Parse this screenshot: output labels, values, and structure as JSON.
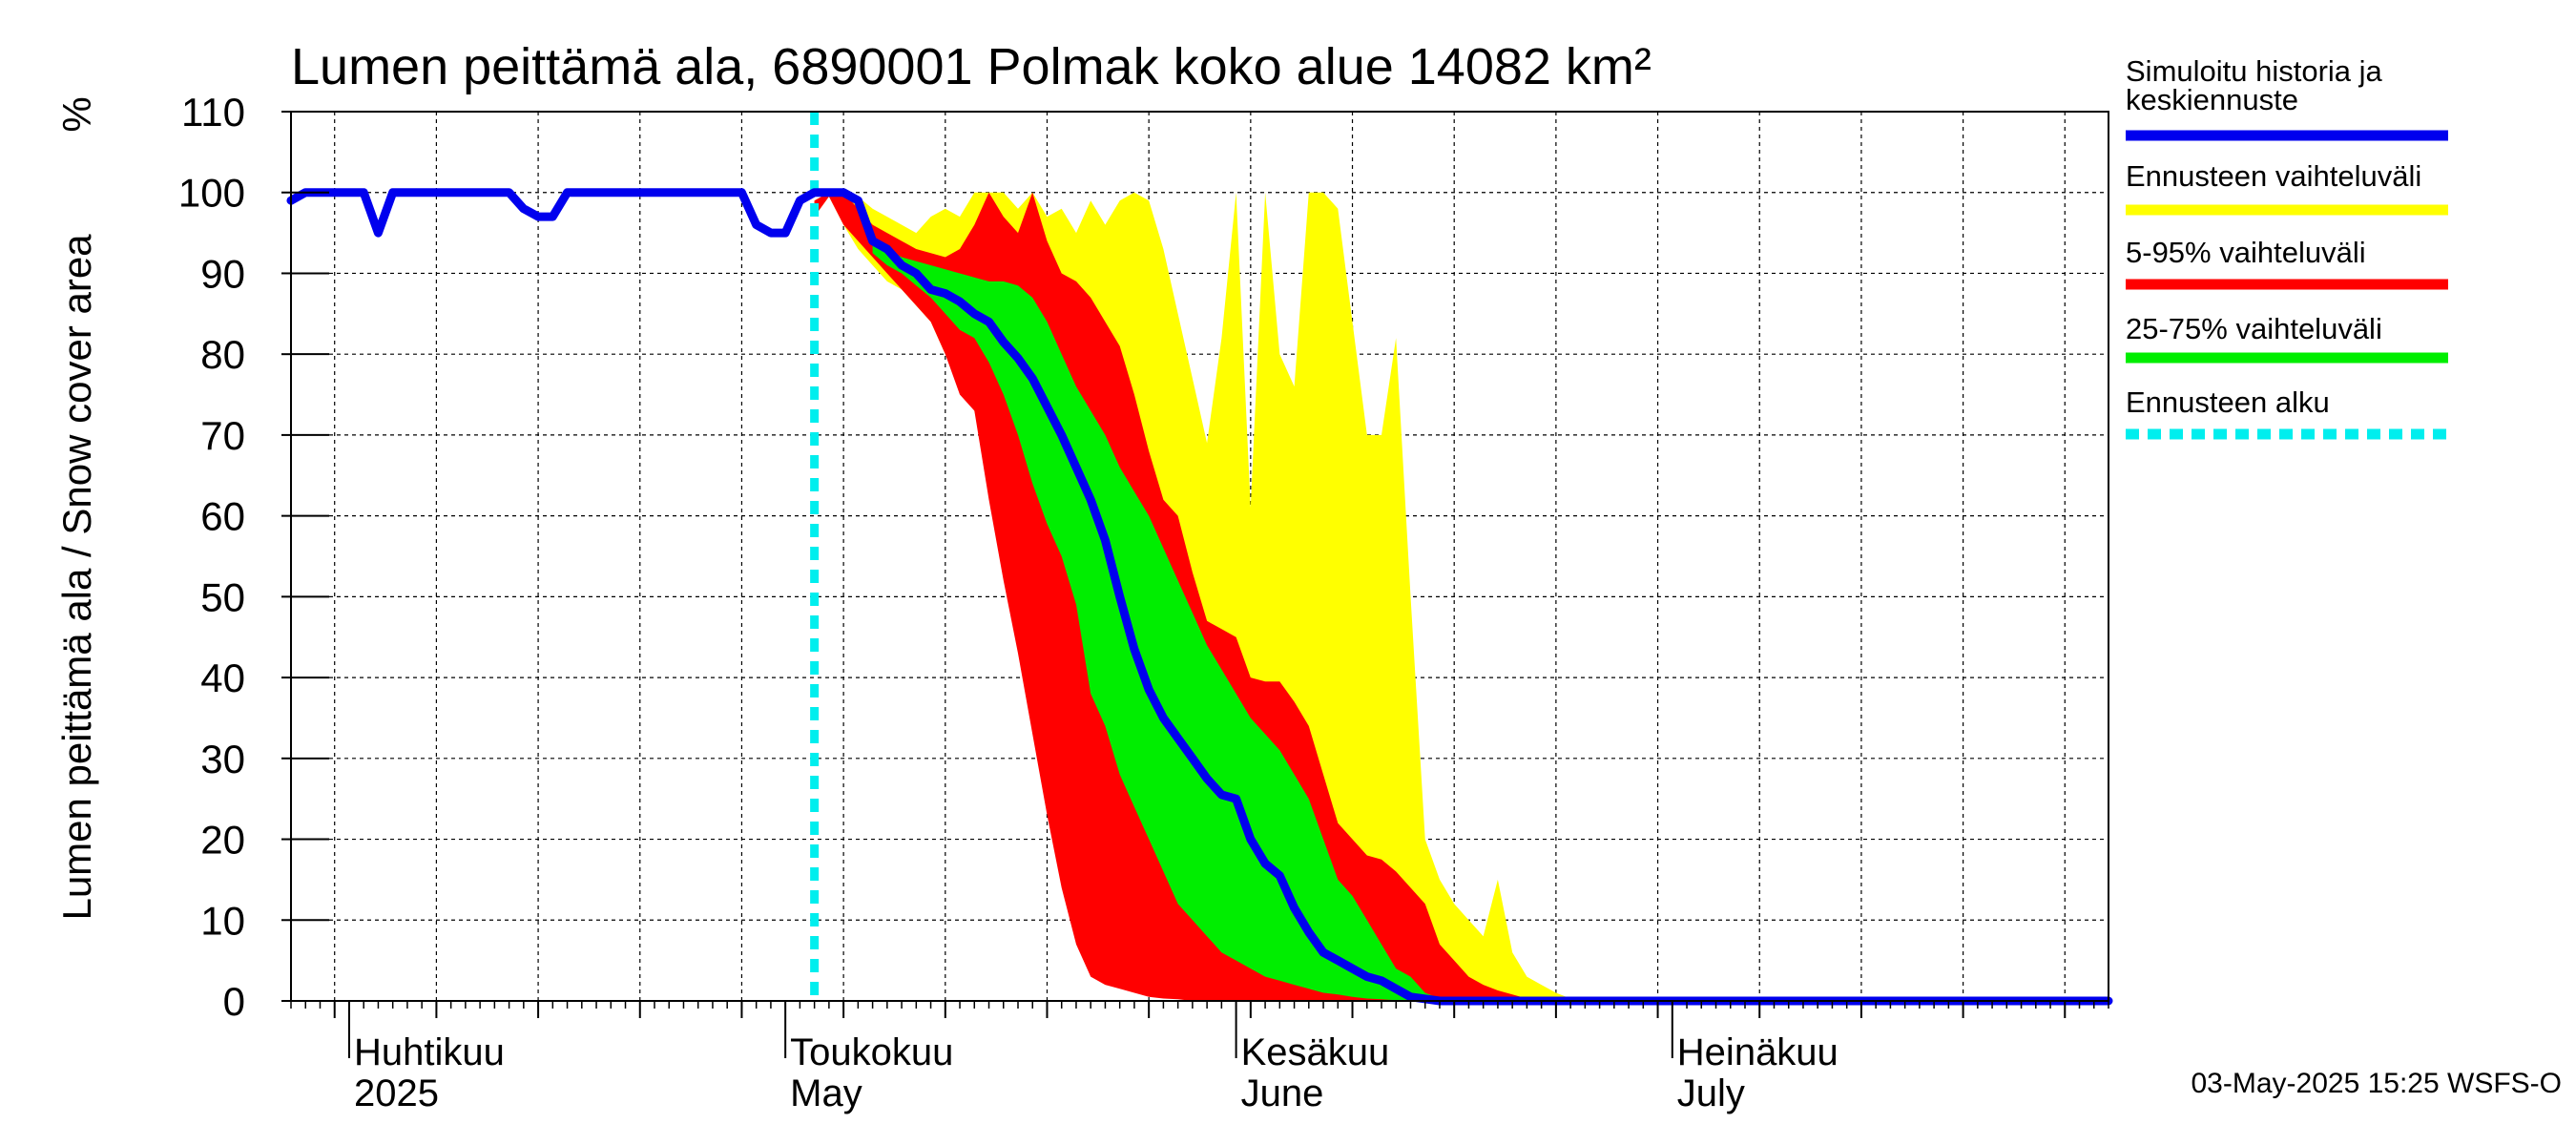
{
  "chart_data": {
    "type": "area",
    "title": "Lumen peittämä ala, 6890001 Polmak koko alue 14082 km²",
    "ylabel": "Lumen peittämä ala / Snow cover area",
    "yunit": "%",
    "ylim": [
      0,
      110
    ],
    "yticks": [
      0,
      10,
      20,
      30,
      40,
      50,
      60,
      70,
      80,
      90,
      100,
      110
    ],
    "xlim": [
      "2025-03-28",
      "2025-07-31"
    ],
    "grid": true,
    "month_labels": [
      {
        "date": "2025-04-01",
        "line1": "Huhtikuu",
        "line2": "2025"
      },
      {
        "date": "2025-05-01",
        "line1": "Toukokuu",
        "line2": "May"
      },
      {
        "date": "2025-06-01",
        "line1": "Kesäkuu",
        "line2": "June"
      },
      {
        "date": "2025-07-01",
        "line1": "Heinäkuu",
        "line2": "July"
      }
    ],
    "forecast_start": "2025-05-03",
    "legend": [
      {
        "label": "Simuloitu historia ja keskiennuste",
        "color": "#0000ee",
        "style": "solid"
      },
      {
        "label": "Ennusteen vaihteluväli",
        "color": "#ffff00",
        "style": "solid"
      },
      {
        "label": "5-95% vaihteluväli",
        "color": "#ff0000",
        "style": "solid"
      },
      {
        "label": "25-75% vaihteluväli",
        "color": "#00ee00",
        "style": "solid"
      },
      {
        "label": "Ennusteen alku",
        "color": "#00eeee",
        "style": "dashed"
      }
    ],
    "series": [
      {
        "name": "Simuloitu historia ja keskiennuste",
        "kind": "line",
        "color": "#0000ee",
        "points": [
          [
            "2025-03-28",
            99
          ],
          [
            "2025-03-29",
            100
          ],
          [
            "2025-04-01",
            100
          ],
          [
            "2025-04-02",
            100
          ],
          [
            "2025-04-03",
            95
          ],
          [
            "2025-04-04",
            100
          ],
          [
            "2025-04-06",
            100
          ],
          [
            "2025-04-10",
            100
          ],
          [
            "2025-04-12",
            100
          ],
          [
            "2025-04-13",
            98
          ],
          [
            "2025-04-14",
            97
          ],
          [
            "2025-04-15",
            97
          ],
          [
            "2025-04-16",
            100
          ],
          [
            "2025-04-28",
            100
          ],
          [
            "2025-04-29",
            96
          ],
          [
            "2025-04-30",
            95
          ],
          [
            "2025-05-01",
            95
          ],
          [
            "2025-05-02",
            99
          ],
          [
            "2025-05-03",
            100
          ],
          [
            "2025-05-05",
            100
          ],
          [
            "2025-05-06",
            99
          ],
          [
            "2025-05-07",
            94
          ],
          [
            "2025-05-08",
            93
          ],
          [
            "2025-05-09",
            91
          ],
          [
            "2025-05-10",
            90
          ],
          [
            "2025-05-11",
            88
          ],
          [
            "2025-05-12",
            87.5
          ],
          [
            "2025-05-13",
            86.5
          ],
          [
            "2025-05-14",
            85
          ],
          [
            "2025-05-15",
            84
          ],
          [
            "2025-05-16",
            81.5
          ],
          [
            "2025-05-17",
            79.5
          ],
          [
            "2025-05-18",
            77
          ],
          [
            "2025-05-19",
            73.5
          ],
          [
            "2025-05-20",
            70
          ],
          [
            "2025-05-21",
            66
          ],
          [
            "2025-05-22",
            62
          ],
          [
            "2025-05-23",
            57
          ],
          [
            "2025-05-24",
            50
          ],
          [
            "2025-05-25",
            43.5
          ],
          [
            "2025-05-26",
            38.5
          ],
          [
            "2025-05-27",
            35
          ],
          [
            "2025-05-28",
            32.5
          ],
          [
            "2025-05-29",
            30
          ],
          [
            "2025-05-30",
            27.5
          ],
          [
            "2025-05-31",
            25.5
          ],
          [
            "2025-06-01",
            25
          ],
          [
            "2025-06-02",
            20
          ],
          [
            "2025-06-03",
            17
          ],
          [
            "2025-06-04",
            15.5
          ],
          [
            "2025-06-05",
            11.5
          ],
          [
            "2025-06-06",
            8.5
          ],
          [
            "2025-06-07",
            6
          ],
          [
            "2025-06-08",
            5
          ],
          [
            "2025-06-09",
            4
          ],
          [
            "2025-06-10",
            3
          ],
          [
            "2025-06-11",
            2.5
          ],
          [
            "2025-06-12",
            1.5
          ],
          [
            "2025-06-13",
            0.5
          ],
          [
            "2025-06-15",
            0
          ],
          [
            "2025-07-31",
            0
          ]
        ]
      },
      {
        "name": "Ennusteen vaihteluväli",
        "kind": "band",
        "color": "#ffff00",
        "points": [
          [
            "2025-05-03",
            97,
            99
          ],
          [
            "2025-05-04",
            99.5,
            100
          ],
          [
            "2025-05-05",
            96,
            100
          ],
          [
            "2025-05-06",
            93,
            99.5
          ],
          [
            "2025-05-07",
            91,
            98
          ],
          [
            "2025-05-08",
            89,
            97
          ],
          [
            "2025-05-09",
            88,
            96
          ],
          [
            "2025-05-10",
            86,
            95
          ],
          [
            "2025-05-11",
            84,
            97
          ],
          [
            "2025-05-12",
            80,
            98
          ],
          [
            "2025-05-13",
            77,
            97
          ],
          [
            "2025-05-14",
            73,
            100
          ],
          [
            "2025-05-15",
            65,
            100
          ],
          [
            "2025-05-16",
            57,
            100
          ],
          [
            "2025-05-17",
            50,
            98
          ],
          [
            "2025-05-18",
            42,
            100
          ],
          [
            "2025-05-19",
            33,
            97
          ],
          [
            "2025-05-20",
            24,
            98
          ],
          [
            "2025-05-21",
            16,
            95
          ],
          [
            "2025-05-22",
            10,
            99
          ],
          [
            "2025-05-23",
            5,
            96
          ],
          [
            "2025-05-24",
            3,
            99
          ],
          [
            "2025-05-25",
            2,
            100
          ],
          [
            "2025-05-26",
            1.5,
            99
          ],
          [
            "2025-05-27",
            1,
            93
          ],
          [
            "2025-05-28",
            0.5,
            85
          ],
          [
            "2025-05-29",
            0.2,
            77
          ],
          [
            "2025-05-30",
            0,
            69
          ],
          [
            "2025-05-31",
            0,
            82
          ],
          [
            "2025-06-01",
            0,
            100
          ],
          [
            "2025-06-02",
            0,
            61
          ],
          [
            "2025-06-03",
            0,
            100
          ],
          [
            "2025-06-04",
            0,
            80
          ],
          [
            "2025-06-05",
            0,
            76
          ],
          [
            "2025-06-06",
            0,
            100
          ],
          [
            "2025-06-07",
            0,
            100
          ],
          [
            "2025-06-08",
            0,
            98
          ],
          [
            "2025-06-09",
            0,
            84
          ],
          [
            "2025-06-10",
            0,
            70
          ],
          [
            "2025-06-11",
            0,
            70
          ],
          [
            "2025-06-12",
            0,
            82
          ],
          [
            "2025-06-13",
            0,
            50
          ],
          [
            "2025-06-14",
            0,
            20
          ],
          [
            "2025-06-15",
            0,
            15
          ],
          [
            "2025-06-16",
            0,
            12
          ],
          [
            "2025-06-17",
            0,
            10
          ],
          [
            "2025-06-18",
            0,
            8
          ],
          [
            "2025-06-19",
            0,
            15
          ],
          [
            "2025-06-20",
            0,
            6
          ],
          [
            "2025-06-21",
            0,
            3
          ],
          [
            "2025-06-22",
            0,
            2
          ],
          [
            "2025-06-23",
            0,
            1
          ],
          [
            "2025-06-24",
            0,
            0.3
          ],
          [
            "2025-06-25",
            0,
            0
          ]
        ]
      },
      {
        "name": "5-95% vaihteluväli",
        "kind": "band",
        "color": "#ff0000",
        "points": [
          [
            "2025-05-03",
            97,
            99
          ],
          [
            "2025-05-04",
            99.5,
            100
          ],
          [
            "2025-05-05",
            96,
            100
          ],
          [
            "2025-05-06",
            94,
            98
          ],
          [
            "2025-05-07",
            92,
            96
          ],
          [
            "2025-05-08",
            90,
            95
          ],
          [
            "2025-05-09",
            88,
            94
          ],
          [
            "2025-05-10",
            86,
            93
          ],
          [
            "2025-05-11",
            84,
            92.5
          ],
          [
            "2025-05-12",
            80,
            92
          ],
          [
            "2025-05-13",
            75,
            93
          ],
          [
            "2025-05-14",
            73,
            96
          ],
          [
            "2025-05-15",
            62,
            100
          ],
          [
            "2025-05-16",
            52,
            97
          ],
          [
            "2025-05-17",
            43,
            95
          ],
          [
            "2025-05-18",
            33,
            100
          ],
          [
            "2025-05-19",
            23,
            94
          ],
          [
            "2025-05-20",
            14,
            90
          ],
          [
            "2025-05-21",
            7,
            89
          ],
          [
            "2025-05-22",
            3,
            87
          ],
          [
            "2025-05-23",
            2,
            84
          ],
          [
            "2025-05-24",
            1.5,
            81
          ],
          [
            "2025-05-25",
            1,
            75
          ],
          [
            "2025-05-26",
            0.5,
            68
          ],
          [
            "2025-05-27",
            0.3,
            62
          ],
          [
            "2025-05-28",
            0.2,
            60
          ],
          [
            "2025-05-29",
            0,
            53
          ],
          [
            "2025-05-30",
            0,
            47
          ],
          [
            "2025-05-31",
            0,
            46
          ],
          [
            "2025-06-01",
            0,
            45
          ],
          [
            "2025-06-02",
            0,
            40
          ],
          [
            "2025-06-03",
            0,
            39.5
          ],
          [
            "2025-06-04",
            0,
            39.5
          ],
          [
            "2025-06-05",
            0,
            37
          ],
          [
            "2025-06-06",
            0,
            34
          ],
          [
            "2025-06-07",
            0,
            28
          ],
          [
            "2025-06-08",
            0,
            22
          ],
          [
            "2025-06-09",
            0,
            20
          ],
          [
            "2025-06-10",
            0,
            18
          ],
          [
            "2025-06-11",
            0,
            17.5
          ],
          [
            "2025-06-12",
            0,
            16
          ],
          [
            "2025-06-13",
            0,
            14
          ],
          [
            "2025-06-14",
            0,
            12
          ],
          [
            "2025-06-15",
            0,
            7
          ],
          [
            "2025-06-16",
            0,
            5
          ],
          [
            "2025-06-17",
            0,
            3
          ],
          [
            "2025-06-18",
            0,
            2
          ],
          [
            "2025-06-19",
            0,
            1.3
          ],
          [
            "2025-06-20",
            0,
            0.8
          ],
          [
            "2025-06-21",
            0,
            0.3
          ],
          [
            "2025-06-22",
            0,
            0
          ]
        ]
      },
      {
        "name": "25-75% vaihteluväli",
        "kind": "band",
        "color": "#00ee00",
        "points": [
          [
            "2025-05-07",
            92.5,
            94.5
          ],
          [
            "2025-05-08",
            91,
            93
          ],
          [
            "2025-05-09",
            90,
            92
          ],
          [
            "2025-05-10",
            88.5,
            91.5
          ],
          [
            "2025-05-11",
            87,
            91
          ],
          [
            "2025-05-12",
            85,
            90.5
          ],
          [
            "2025-05-13",
            83,
            90
          ],
          [
            "2025-05-14",
            82,
            89.5
          ],
          [
            "2025-05-15",
            79,
            89
          ],
          [
            "2025-05-16",
            75,
            89
          ],
          [
            "2025-05-17",
            70,
            88.5
          ],
          [
            "2025-05-18",
            64,
            87
          ],
          [
            "2025-05-19",
            59,
            84
          ],
          [
            "2025-05-20",
            55,
            80
          ],
          [
            "2025-05-21",
            49,
            76
          ],
          [
            "2025-05-22",
            38,
            73
          ],
          [
            "2025-05-23",
            34,
            70
          ],
          [
            "2025-05-24",
            28,
            66
          ],
          [
            "2025-05-25",
            24,
            63
          ],
          [
            "2025-05-26",
            20,
            60
          ],
          [
            "2025-05-27",
            16,
            56
          ],
          [
            "2025-05-28",
            12,
            52
          ],
          [
            "2025-05-29",
            10,
            48
          ],
          [
            "2025-05-30",
            8,
            44
          ],
          [
            "2025-05-31",
            6,
            41
          ],
          [
            "2025-06-01",
            5,
            38
          ],
          [
            "2025-06-02",
            4,
            35
          ],
          [
            "2025-06-03",
            3,
            33
          ],
          [
            "2025-06-04",
            2.5,
            31
          ],
          [
            "2025-06-05",
            2,
            28
          ],
          [
            "2025-06-06",
            1.5,
            25
          ],
          [
            "2025-06-07",
            1,
            20
          ],
          [
            "2025-06-08",
            0.8,
            15
          ],
          [
            "2025-06-09",
            0.5,
            13
          ],
          [
            "2025-06-10",
            0.3,
            10
          ],
          [
            "2025-06-11",
            0.2,
            7
          ],
          [
            "2025-06-12",
            0.1,
            4
          ],
          [
            "2025-06-13",
            0,
            3
          ],
          [
            "2025-06-14",
            0,
            1
          ],
          [
            "2025-06-15",
            0,
            0.3
          ],
          [
            "2025-06-16",
            0,
            0
          ]
        ]
      }
    ]
  },
  "footer": {
    "timestamp": "03-May-2025 15:25 WSFS-O"
  }
}
